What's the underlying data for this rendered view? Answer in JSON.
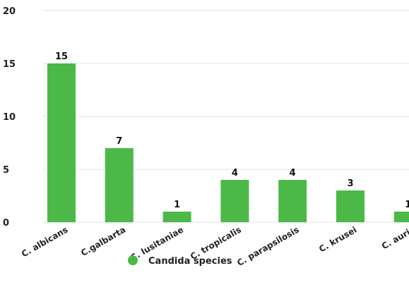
{
  "chart_data": {
    "type": "bar",
    "categories": [
      "C. albicans",
      "C.galbarta",
      "C. lusitaniae",
      "C. tropicalis",
      "C. parapsilosis",
      "C. krusei",
      "C. auris"
    ],
    "series": [
      {
        "name": "Candida species",
        "values": [
          15,
          7,
          1,
          4,
          4,
          3,
          1
        ],
        "color": "#4cb848"
      }
    ],
    "data_labels": [
      "15",
      "7",
      "1",
      "4",
      "4",
      "3",
      "1"
    ],
    "yticks": [
      0,
      5,
      10,
      15,
      20
    ],
    "ylim": [
      0,
      20
    ],
    "grid": true,
    "legend_position": "bottom-left",
    "gridline_color": "#e6e6e6",
    "bar_color": "#4cb848"
  }
}
